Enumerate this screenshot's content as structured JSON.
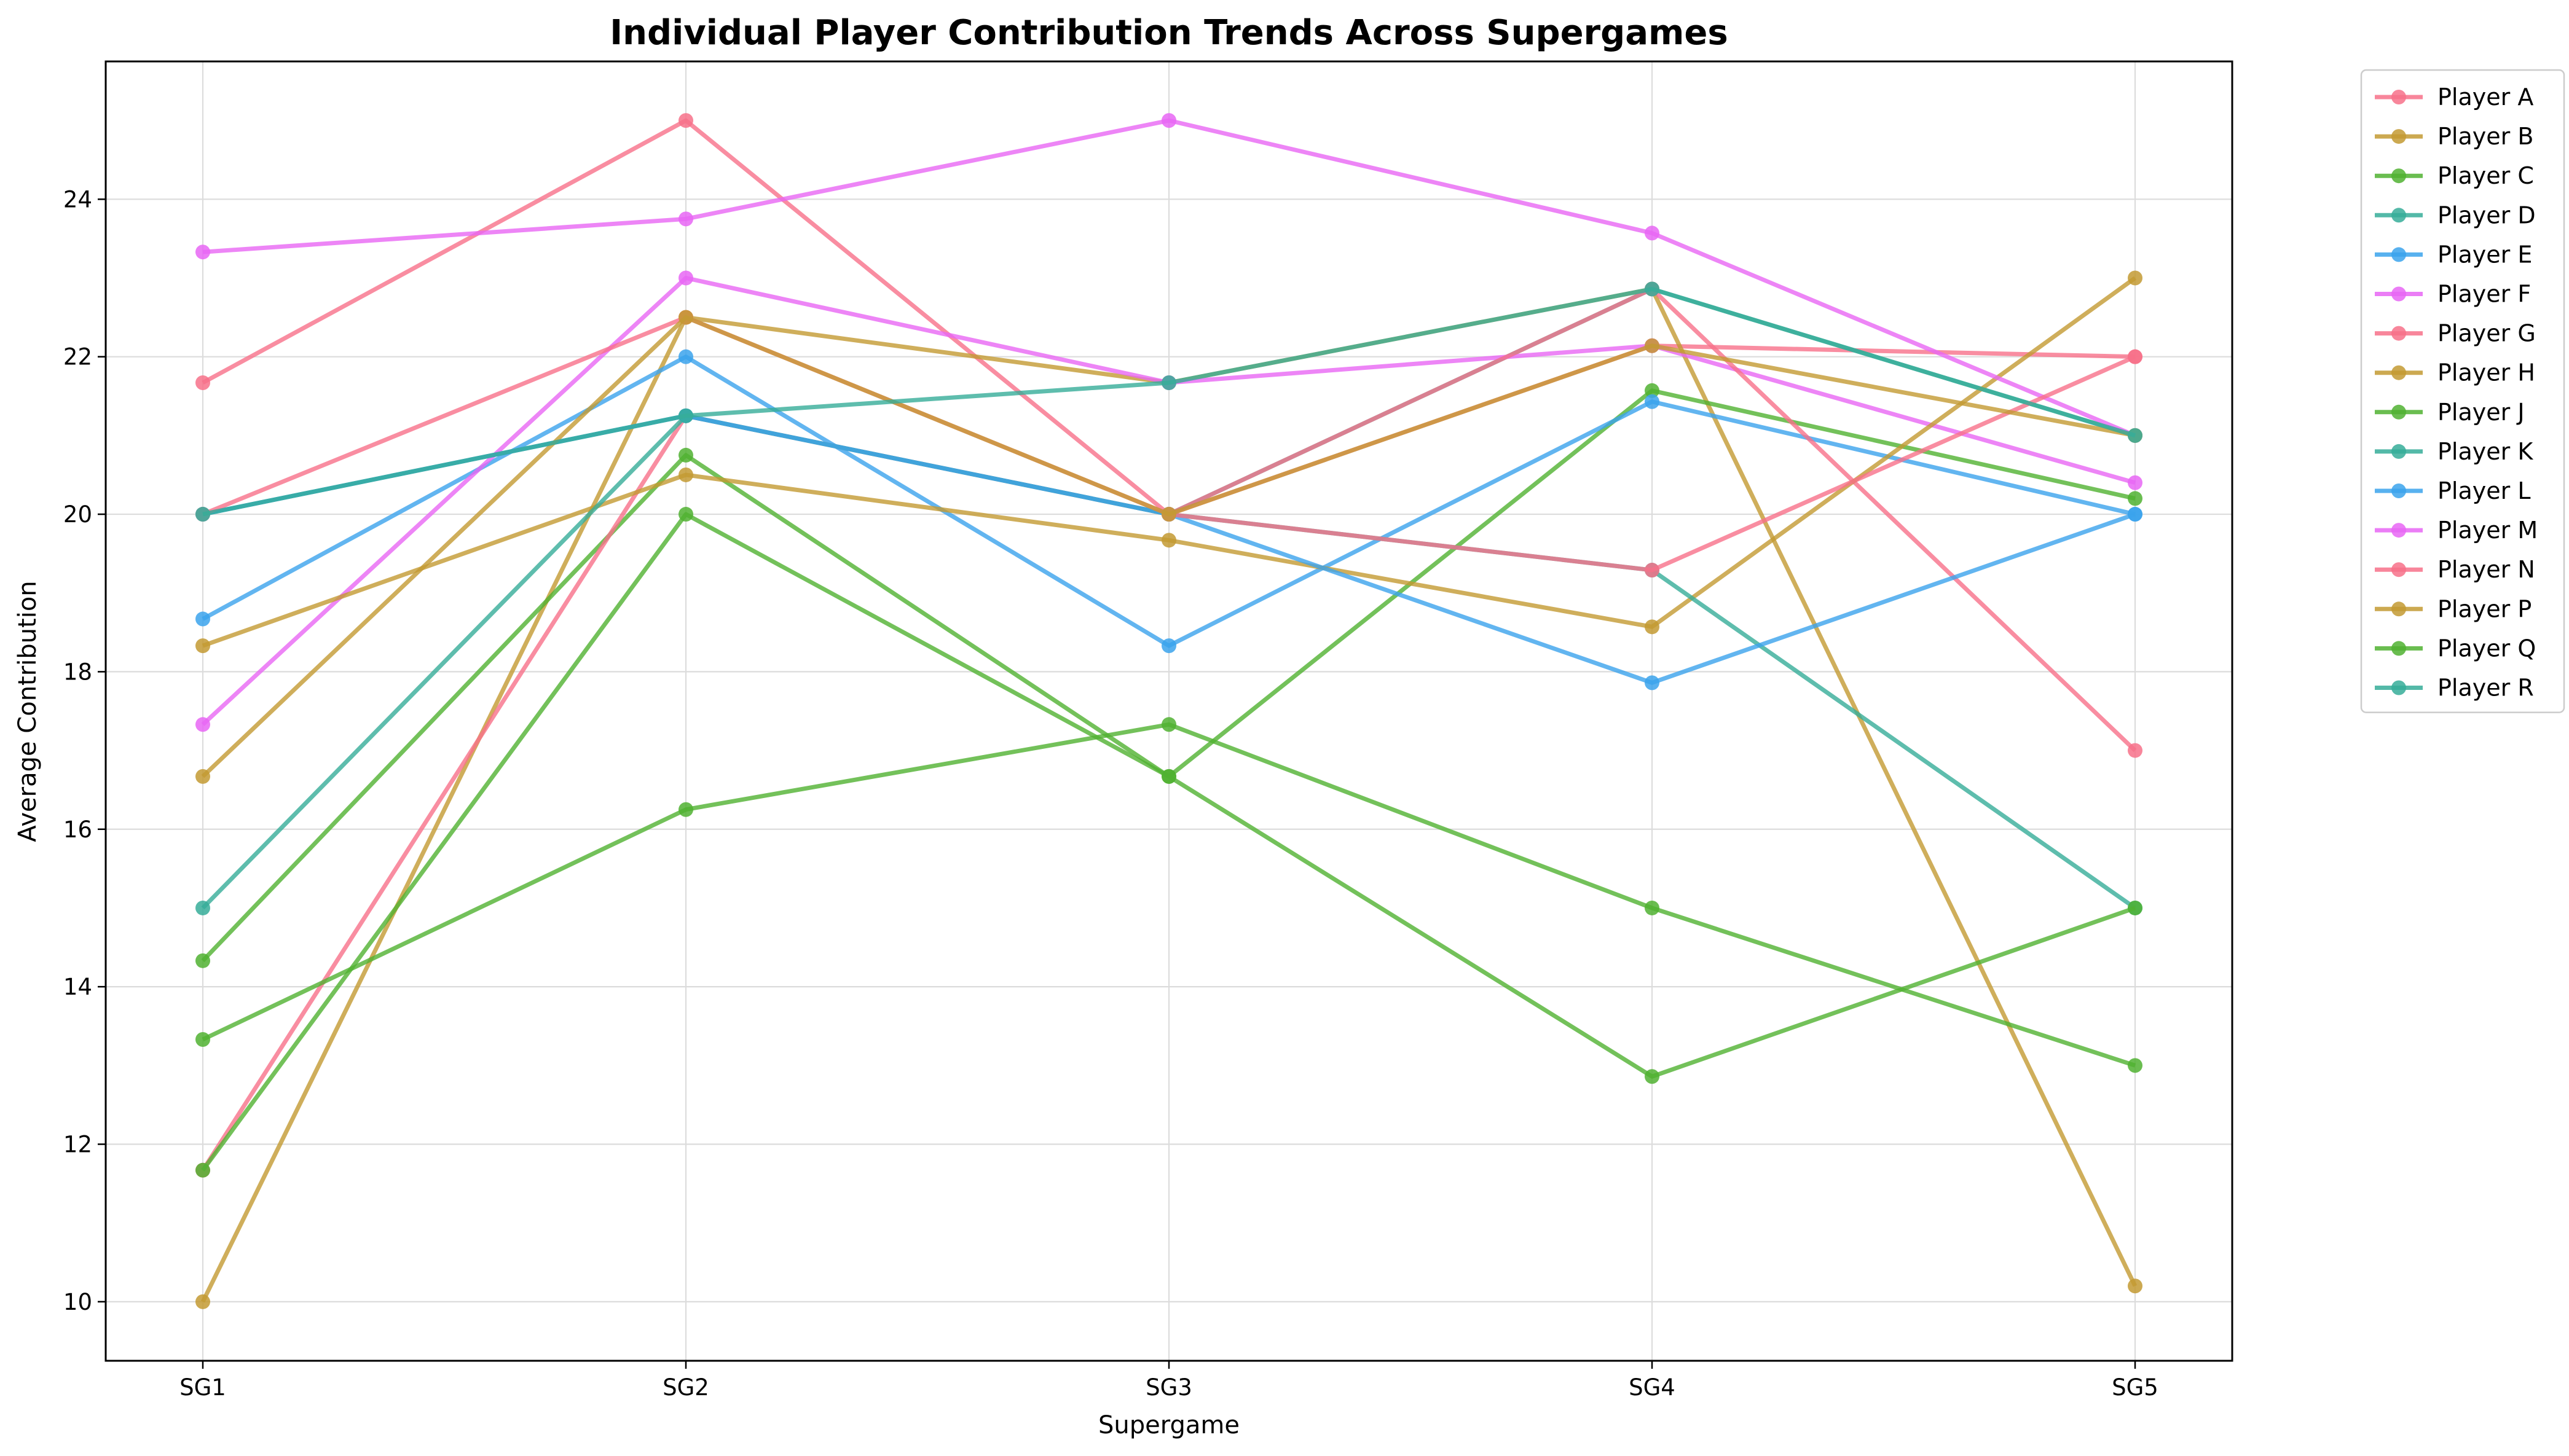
{
  "chart_data": {
    "type": "line",
    "title": "Individual Player Contribution Trends Across Supergames",
    "xlabel": "Supergame",
    "ylabel": "Average Contribution",
    "categories": [
      "SG1",
      "SG2",
      "SG3",
      "SG4",
      "SG5"
    ],
    "ylim": [
      9.25,
      25.75
    ],
    "yticks": [
      10,
      12,
      14,
      16,
      18,
      20,
      22,
      24
    ],
    "grid": true,
    "legend_position": "outside-right",
    "series": [
      {
        "name": "Player A",
        "color": "#f77189",
        "values": [
          21.67,
          25.0,
          20.0,
          22.14,
          22.0
        ]
      },
      {
        "name": "Player B",
        "color": "#c39a32",
        "values": [
          10.0,
          22.5,
          21.67,
          22.86,
          10.2
        ]
      },
      {
        "name": "Player C",
        "color": "#50b131",
        "values": [
          14.33,
          20.75,
          16.67,
          21.57,
          20.2
        ]
      },
      {
        "name": "Player D",
        "color": "#36ad99",
        "values": [
          20.0,
          21.25,
          20.0,
          22.86,
          21.0
        ]
      },
      {
        "name": "Player E",
        "color": "#3ba3ec",
        "values": [
          18.67,
          22.0,
          18.33,
          21.43,
          20.0
        ]
      },
      {
        "name": "Player F",
        "color": "#e866f4",
        "values": [
          17.33,
          23.0,
          21.67,
          22.14,
          20.4
        ]
      },
      {
        "name": "Player G",
        "color": "#f77189",
        "values": [
          11.67,
          21.25,
          20.0,
          22.86,
          17.0
        ]
      },
      {
        "name": "Player H",
        "color": "#c39a32",
        "values": [
          18.33,
          20.5,
          19.67,
          18.57,
          23.0
        ]
      },
      {
        "name": "Player J",
        "color": "#50b131",
        "values": [
          13.33,
          16.25,
          17.33,
          15.0,
          13.0
        ]
      },
      {
        "name": "Player K",
        "color": "#36ad99",
        "values": [
          15.0,
          21.25,
          20.0,
          19.29,
          15.0
        ]
      },
      {
        "name": "Player L",
        "color": "#3ba3ec",
        "values": [
          20.0,
          21.25,
          20.0,
          17.86,
          20.0
        ]
      },
      {
        "name": "Player M",
        "color": "#e866f4",
        "values": [
          23.33,
          23.75,
          25.0,
          23.57,
          21.0
        ]
      },
      {
        "name": "Player N",
        "color": "#f77189",
        "values": [
          20.0,
          22.5,
          20.0,
          19.29,
          22.0
        ]
      },
      {
        "name": "Player P",
        "color": "#c39a32",
        "values": [
          16.67,
          22.5,
          20.0,
          22.14,
          21.0
        ]
      },
      {
        "name": "Player Q",
        "color": "#50b131",
        "values": [
          11.67,
          20.0,
          16.67,
          12.86,
          15.0
        ]
      },
      {
        "name": "Player R",
        "color": "#36ad99",
        "values": [
          20.0,
          21.25,
          21.67,
          22.86,
          21.0
        ]
      }
    ]
  }
}
